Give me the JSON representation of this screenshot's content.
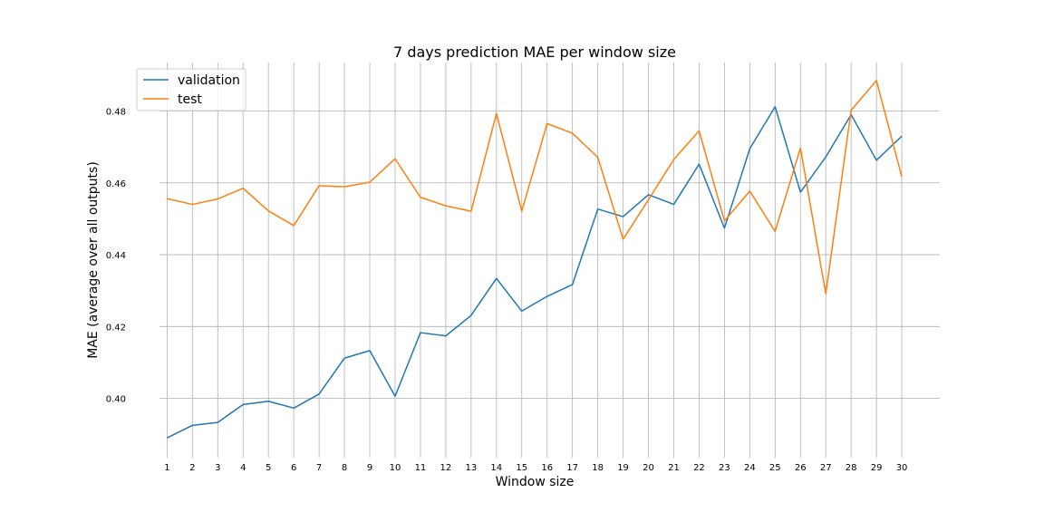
{
  "chart_data": {
    "type": "line",
    "title": "7 days prediction MAE per window size",
    "xlabel": "Window size",
    "ylabel": "MAE (average over all outputs)",
    "x": [
      1,
      2,
      3,
      4,
      5,
      6,
      7,
      8,
      9,
      10,
      11,
      12,
      13,
      14,
      15,
      16,
      17,
      18,
      19,
      20,
      21,
      22,
      23,
      24,
      25,
      26,
      27,
      28,
      29,
      30
    ],
    "xlim": [
      0.7,
      31.5
    ],
    "ylim": [
      0.3835,
      0.4935
    ],
    "yticks": [
      0.4,
      0.42,
      0.44,
      0.46,
      0.48
    ],
    "ytick_labels": [
      "0.40",
      "0.42",
      "0.44",
      "0.46",
      "0.48"
    ],
    "grid": true,
    "legend_position": "top-left",
    "series": [
      {
        "name": "validation",
        "color": "#1f77b4",
        "values": [
          0.389,
          0.3925,
          0.3933,
          0.3983,
          0.3992,
          0.3973,
          0.4012,
          0.4112,
          0.4133,
          0.4006,
          0.4183,
          0.4174,
          0.4231,
          0.4334,
          0.4243,
          0.4284,
          0.4317,
          0.4527,
          0.4506,
          0.4567,
          0.454,
          0.4652,
          0.4474,
          0.4695,
          0.4812,
          0.4574,
          0.4672,
          0.479,
          0.4663,
          0.473
        ]
      },
      {
        "name": "test",
        "color": "#ff7f0e",
        "values": [
          0.4556,
          0.454,
          0.4555,
          0.4585,
          0.4522,
          0.4481,
          0.4592,
          0.4589,
          0.4602,
          0.4667,
          0.456,
          0.4536,
          0.4521,
          0.4793,
          0.4521,
          0.4765,
          0.4738,
          0.4671,
          0.4443,
          0.4553,
          0.4665,
          0.4745,
          0.4494,
          0.4577,
          0.4465,
          0.4697,
          0.4291,
          0.4802,
          0.4885,
          0.4617
        ]
      }
    ]
  }
}
